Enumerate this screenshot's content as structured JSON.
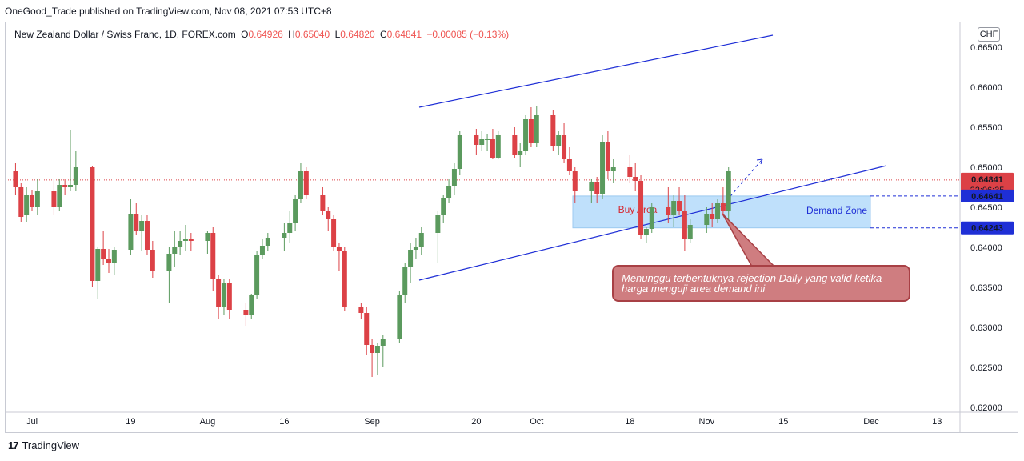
{
  "publisher": "OneGood_Trade published on TradingView.com, Nov 08, 2021 07:53 UTC+8",
  "legend": {
    "symbol": "New Zealand Dollar / Swiss Franc, 1D, FOREX.com",
    "open_label": "O",
    "open": "0.64926",
    "high_label": "H",
    "high": "0.65040",
    "low_label": "L",
    "low": "0.64820",
    "close_label": "C",
    "close": "0.64841",
    "change": "−0.00085 (−0.13%)"
  },
  "currency": "CHF",
  "footer": {
    "logo": "17",
    "brand": "TradingView"
  },
  "callout_text": "Menunggu terbentuknya rejection Daily yang valid ketika harga menguji area demand ini",
  "chart_data": {
    "type": "candlestick",
    "y_axis_labels": [
      "0.66500",
      "0.66000",
      "0.65500",
      "0.65000",
      "0.64500",
      "0.64000",
      "0.63500",
      "0.63000",
      "0.62500",
      "0.62000"
    ],
    "y_axis_values": [
      0.665,
      0.66,
      0.655,
      0.65,
      0.645,
      0.64,
      0.635,
      0.63,
      0.625,
      0.62
    ],
    "ylim": [
      0.6198,
      0.6676
    ],
    "x_axis_labels": [
      "Jul",
      "19",
      "Aug",
      "16",
      "Sep",
      "20",
      "Oct",
      "18",
      "Nov",
      "15",
      "Dec",
      "13"
    ],
    "x_axis_dates": [
      "2021-07-01",
      "2021-07-19",
      "2021-08-02",
      "2021-08-16",
      "2021-09-01",
      "2021-09-20",
      "2021-10-01",
      "2021-10-18",
      "2021-11-01",
      "2021-11-15",
      "2021-12-01",
      "2021-12-13"
    ],
    "price_labels": {
      "last": "0.64841",
      "countdown": "22:06:35",
      "zone_top": "0.64641",
      "zone_bottom": "0.64243"
    },
    "zone": {
      "top": 0.64641,
      "bottom": 0.64243,
      "buy_label": "Buy Area",
      "demand_label": "Demand Zone"
    },
    "colors": {
      "up": "#5b9a5e",
      "down": "#dc4146",
      "line": "#1f2fd6",
      "zone_fill": "#bfe0fb",
      "zone_border": "#9ccaf0"
    },
    "candles": [
      {
        "d": "2021-06-28",
        "o": 0.6495,
        "h": 0.6505,
        "l": 0.6465,
        "c": 0.6475
      },
      {
        "d": "2021-06-29",
        "o": 0.6475,
        "h": 0.648,
        "l": 0.6432,
        "c": 0.6438
      },
      {
        "d": "2021-06-30",
        "o": 0.644,
        "h": 0.6475,
        "l": 0.6432,
        "c": 0.6465
      },
      {
        "d": "2021-07-01",
        "o": 0.6465,
        "h": 0.6472,
        "l": 0.6445,
        "c": 0.645
      },
      {
        "d": "2021-07-02",
        "o": 0.645,
        "h": 0.6485,
        "l": 0.644,
        "c": 0.647
      },
      {
        "d": "2021-07-05",
        "o": 0.647,
        "h": 0.6485,
        "l": 0.644,
        "c": 0.645
      },
      {
        "d": "2021-07-06",
        "o": 0.645,
        "h": 0.6485,
        "l": 0.6445,
        "c": 0.6478
      },
      {
        "d": "2021-07-07",
        "o": 0.6478,
        "h": 0.6485,
        "l": 0.6465,
        "c": 0.6475
      },
      {
        "d": "2021-07-08",
        "o": 0.6475,
        "h": 0.6547,
        "l": 0.647,
        "c": 0.6478
      },
      {
        "d": "2021-07-09",
        "o": 0.6478,
        "h": 0.652,
        "l": 0.647,
        "c": 0.65
      },
      {
        "d": "2021-07-12",
        "o": 0.65,
        "h": 0.6502,
        "l": 0.635,
        "c": 0.6358
      },
      {
        "d": "2021-07-13",
        "o": 0.6358,
        "h": 0.64,
        "l": 0.6335,
        "c": 0.6398
      },
      {
        "d": "2021-07-14",
        "o": 0.6398,
        "h": 0.642,
        "l": 0.6378,
        "c": 0.6385
      },
      {
        "d": "2021-07-15",
        "o": 0.6385,
        "h": 0.6398,
        "l": 0.6368,
        "c": 0.638
      },
      {
        "d": "2021-07-16",
        "o": 0.638,
        "h": 0.64,
        "l": 0.6365,
        "c": 0.6397
      },
      {
        "d": "2021-07-19",
        "o": 0.6397,
        "h": 0.646,
        "l": 0.639,
        "c": 0.6442
      },
      {
        "d": "2021-07-20",
        "o": 0.6442,
        "h": 0.6455,
        "l": 0.6415,
        "c": 0.642
      },
      {
        "d": "2021-07-21",
        "o": 0.642,
        "h": 0.644,
        "l": 0.6395,
        "c": 0.6433
      },
      {
        "d": "2021-07-22",
        "o": 0.6433,
        "h": 0.644,
        "l": 0.639,
        "c": 0.6397
      },
      {
        "d": "2021-07-23",
        "o": 0.6397,
        "h": 0.6408,
        "l": 0.6362,
        "c": 0.637
      },
      {
        "d": "2021-07-26",
        "o": 0.637,
        "h": 0.64,
        "l": 0.633,
        "c": 0.6392
      },
      {
        "d": "2021-07-27",
        "o": 0.6392,
        "h": 0.642,
        "l": 0.6375,
        "c": 0.64
      },
      {
        "d": "2021-07-28",
        "o": 0.64,
        "h": 0.642,
        "l": 0.639,
        "c": 0.6408
      },
      {
        "d": "2021-07-29",
        "o": 0.6408,
        "h": 0.6428,
        "l": 0.6395,
        "c": 0.641
      },
      {
        "d": "2021-07-30",
        "o": 0.641,
        "h": 0.6418,
        "l": 0.6395,
        "c": 0.6408
      },
      {
        "d": "2021-08-02",
        "o": 0.6408,
        "h": 0.642,
        "l": 0.6392,
        "c": 0.6418
      },
      {
        "d": "2021-08-03",
        "o": 0.6418,
        "h": 0.6425,
        "l": 0.6345,
        "c": 0.636
      },
      {
        "d": "2021-08-04",
        "o": 0.636,
        "h": 0.6365,
        "l": 0.631,
        "c": 0.6325
      },
      {
        "d": "2021-08-05",
        "o": 0.6325,
        "h": 0.636,
        "l": 0.6315,
        "c": 0.6355
      },
      {
        "d": "2021-08-06",
        "o": 0.6355,
        "h": 0.636,
        "l": 0.631,
        "c": 0.6322
      },
      {
        "d": "2021-08-09",
        "o": 0.6322,
        "h": 0.633,
        "l": 0.6302,
        "c": 0.6315
      },
      {
        "d": "2021-08-10",
        "o": 0.6315,
        "h": 0.6342,
        "l": 0.631,
        "c": 0.634
      },
      {
        "d": "2021-08-11",
        "o": 0.634,
        "h": 0.6395,
        "l": 0.6335,
        "c": 0.639
      },
      {
        "d": "2021-08-12",
        "o": 0.639,
        "h": 0.641,
        "l": 0.6385,
        "c": 0.6402
      },
      {
        "d": "2021-08-13",
        "o": 0.6402,
        "h": 0.6418,
        "l": 0.6395,
        "c": 0.6412
      },
      {
        "d": "2021-08-16",
        "o": 0.6412,
        "h": 0.643,
        "l": 0.6395,
        "c": 0.6418
      },
      {
        "d": "2021-08-17",
        "o": 0.6418,
        "h": 0.6445,
        "l": 0.6405,
        "c": 0.643
      },
      {
        "d": "2021-08-18",
        "o": 0.643,
        "h": 0.6465,
        "l": 0.642,
        "c": 0.646
      },
      {
        "d": "2021-08-19",
        "o": 0.646,
        "h": 0.6505,
        "l": 0.6455,
        "c": 0.6495
      },
      {
        "d": "2021-08-20",
        "o": 0.6495,
        "h": 0.65,
        "l": 0.646,
        "c": 0.6465
      },
      {
        "d": "2021-08-23",
        "o": 0.6465,
        "h": 0.6475,
        "l": 0.644,
        "c": 0.6445
      },
      {
        "d": "2021-08-24",
        "o": 0.6445,
        "h": 0.645,
        "l": 0.642,
        "c": 0.6435
      },
      {
        "d": "2021-08-25",
        "o": 0.6435,
        "h": 0.644,
        "l": 0.6395,
        "c": 0.64
      },
      {
        "d": "2021-08-26",
        "o": 0.64,
        "h": 0.6405,
        "l": 0.637,
        "c": 0.6395
      },
      {
        "d": "2021-08-27",
        "o": 0.6395,
        "h": 0.64,
        "l": 0.632,
        "c": 0.6325
      },
      {
        "d": "2021-08-30",
        "o": 0.6325,
        "h": 0.633,
        "l": 0.631,
        "c": 0.6318
      },
      {
        "d": "2021-08-31",
        "o": 0.6318,
        "h": 0.6325,
        "l": 0.6265,
        "c": 0.6278
      },
      {
        "d": "2021-09-01",
        "o": 0.6278,
        "h": 0.6285,
        "l": 0.6238,
        "c": 0.6268
      },
      {
        "d": "2021-09-02",
        "o": 0.6268,
        "h": 0.628,
        "l": 0.624,
        "c": 0.6277
      },
      {
        "d": "2021-09-03",
        "o": 0.6277,
        "h": 0.629,
        "l": 0.625,
        "c": 0.6285
      },
      {
        "d": "2021-09-06",
        "o": 0.6285,
        "h": 0.6345,
        "l": 0.628,
        "c": 0.634
      },
      {
        "d": "2021-09-07",
        "o": 0.634,
        "h": 0.638,
        "l": 0.633,
        "c": 0.6375
      },
      {
        "d": "2021-09-08",
        "o": 0.6375,
        "h": 0.6405,
        "l": 0.6355,
        "c": 0.6397
      },
      {
        "d": "2021-09-09",
        "o": 0.6397,
        "h": 0.6412,
        "l": 0.6385,
        "c": 0.64
      },
      {
        "d": "2021-09-10",
        "o": 0.64,
        "h": 0.6425,
        "l": 0.639,
        "c": 0.6418
      },
      {
        "d": "2021-09-13",
        "o": 0.6418,
        "h": 0.6445,
        "l": 0.638,
        "c": 0.644
      },
      {
        "d": "2021-09-14",
        "o": 0.644,
        "h": 0.6465,
        "l": 0.643,
        "c": 0.6462
      },
      {
        "d": "2021-09-15",
        "o": 0.6462,
        "h": 0.6485,
        "l": 0.6455,
        "c": 0.6477
      },
      {
        "d": "2021-09-16",
        "o": 0.6477,
        "h": 0.6505,
        "l": 0.6465,
        "c": 0.6498
      },
      {
        "d": "2021-09-17",
        "o": 0.6498,
        "h": 0.6545,
        "l": 0.649,
        "c": 0.654
      },
      {
        "d": "2021-09-20",
        "o": 0.654,
        "h": 0.6548,
        "l": 0.6515,
        "c": 0.6528
      },
      {
        "d": "2021-09-21",
        "o": 0.6528,
        "h": 0.6545,
        "l": 0.652,
        "c": 0.6535
      },
      {
        "d": "2021-09-22",
        "o": 0.6535,
        "h": 0.6542,
        "l": 0.652,
        "c": 0.6535
      },
      {
        "d": "2021-09-23",
        "o": 0.6535,
        "h": 0.6548,
        "l": 0.651,
        "c": 0.6512
      },
      {
        "d": "2021-09-24",
        "o": 0.6512,
        "h": 0.6545,
        "l": 0.651,
        "c": 0.654
      },
      {
        "d": "2021-09-27",
        "o": 0.654,
        "h": 0.655,
        "l": 0.6512,
        "c": 0.6515
      },
      {
        "d": "2021-09-28",
        "o": 0.6515,
        "h": 0.653,
        "l": 0.65,
        "c": 0.652
      },
      {
        "d": "2021-09-29",
        "o": 0.652,
        "h": 0.6565,
        "l": 0.6515,
        "c": 0.656
      },
      {
        "d": "2021-09-30",
        "o": 0.656,
        "h": 0.6575,
        "l": 0.6525,
        "c": 0.653
      },
      {
        "d": "2021-10-01",
        "o": 0.653,
        "h": 0.6577,
        "l": 0.6525,
        "c": 0.6565
      },
      {
        "d": "2021-10-04",
        "o": 0.6565,
        "h": 0.6572,
        "l": 0.652,
        "c": 0.6527
      },
      {
        "d": "2021-10-05",
        "o": 0.6527,
        "h": 0.6545,
        "l": 0.6515,
        "c": 0.654
      },
      {
        "d": "2021-10-06",
        "o": 0.654,
        "h": 0.6555,
        "l": 0.6505,
        "c": 0.651
      },
      {
        "d": "2021-10-07",
        "o": 0.651,
        "h": 0.6525,
        "l": 0.649,
        "c": 0.6495
      },
      {
        "d": "2021-10-08",
        "o": 0.6495,
        "h": 0.65,
        "l": 0.6455,
        "c": 0.647
      },
      {
        "d": "2021-10-11",
        "o": 0.647,
        "h": 0.6485,
        "l": 0.6455,
        "c": 0.6482
      },
      {
        "d": "2021-10-12",
        "o": 0.6482,
        "h": 0.6488,
        "l": 0.6455,
        "c": 0.6467
      },
      {
        "d": "2021-10-13",
        "o": 0.6467,
        "h": 0.654,
        "l": 0.646,
        "c": 0.6532
      },
      {
        "d": "2021-10-14",
        "o": 0.6532,
        "h": 0.6545,
        "l": 0.6485,
        "c": 0.6495
      },
      {
        "d": "2021-10-15",
        "o": 0.6495,
        "h": 0.651,
        "l": 0.648,
        "c": 0.65
      },
      {
        "d": "2021-10-18",
        "o": 0.65,
        "h": 0.6515,
        "l": 0.648,
        "c": 0.6488
      },
      {
        "d": "2021-10-19",
        "o": 0.6488,
        "h": 0.6505,
        "l": 0.647,
        "c": 0.6483
      },
      {
        "d": "2021-10-20",
        "o": 0.6483,
        "h": 0.649,
        "l": 0.641,
        "c": 0.6415
      },
      {
        "d": "2021-10-21",
        "o": 0.6415,
        "h": 0.6425,
        "l": 0.6405,
        "c": 0.6423
      },
      {
        "d": "2021-10-22",
        "o": 0.6423,
        "h": 0.6455,
        "l": 0.6418,
        "c": 0.645
      },
      {
        "d": "2021-10-25",
        "o": 0.645,
        "h": 0.6475,
        "l": 0.643,
        "c": 0.644
      },
      {
        "d": "2021-10-26",
        "o": 0.644,
        "h": 0.6465,
        "l": 0.6425,
        "c": 0.6458
      },
      {
        "d": "2021-10-27",
        "o": 0.6458,
        "h": 0.6475,
        "l": 0.644,
        "c": 0.6445
      },
      {
        "d": "2021-10-28",
        "o": 0.6445,
        "h": 0.6465,
        "l": 0.6395,
        "c": 0.641
      },
      {
        "d": "2021-10-29",
        "o": 0.641,
        "h": 0.6435,
        "l": 0.6405,
        "c": 0.6428
      },
      {
        "d": "2021-11-01",
        "o": 0.6428,
        "h": 0.645,
        "l": 0.6418,
        "c": 0.6442
      },
      {
        "d": "2021-11-02",
        "o": 0.6442,
        "h": 0.6455,
        "l": 0.6425,
        "c": 0.6435
      },
      {
        "d": "2021-11-03",
        "o": 0.6435,
        "h": 0.646,
        "l": 0.643,
        "c": 0.6455
      },
      {
        "d": "2021-11-04",
        "o": 0.6455,
        "h": 0.6475,
        "l": 0.644,
        "c": 0.6445
      },
      {
        "d": "2021-11-05",
        "o": 0.6445,
        "h": 0.65,
        "l": 0.6435,
        "c": 0.6495
      }
    ]
  }
}
